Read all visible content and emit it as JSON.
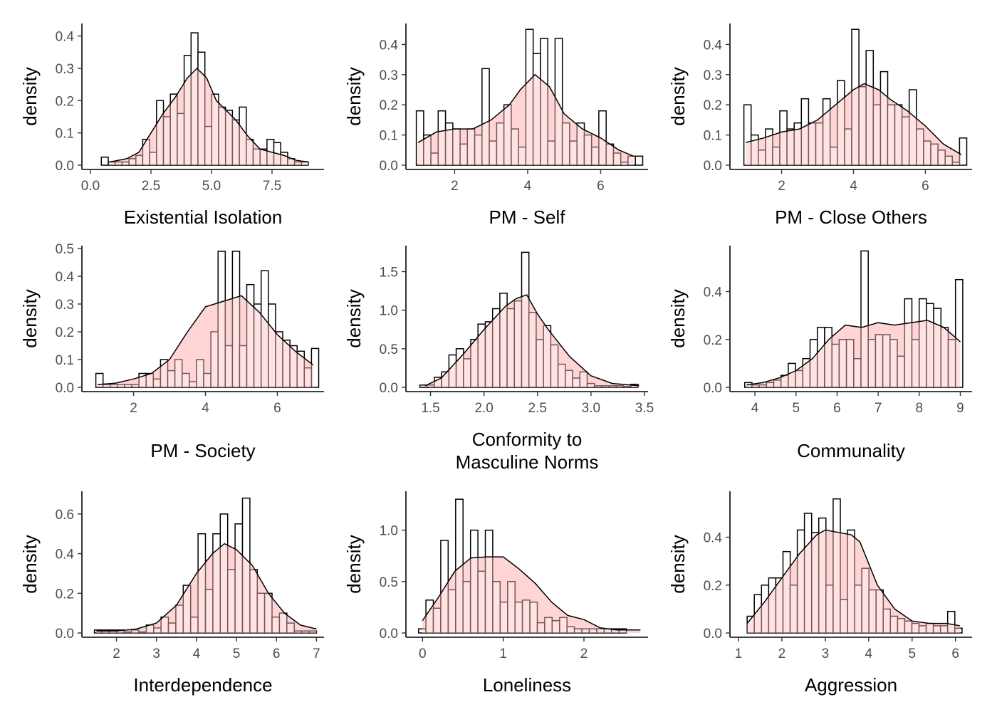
{
  "colors": {
    "density_fill": "#ffc0c0",
    "bar_fill": "#ffffff",
    "stroke": "#000000",
    "tick_text": "#4d4d4d"
  },
  "chart_data": [
    {
      "type": "histogram+density",
      "xlabel": [
        "Existential Isolation"
      ],
      "ylabel": "density",
      "xlim": [
        0,
        9.5
      ],
      "ylim": [
        0,
        0.43
      ],
      "xticks": [
        0,
        2.5,
        5,
        7.5
      ],
      "xtick_labels": [
        "0.0",
        "2.5",
        "5.0",
        "7.5"
      ],
      "yticks": [
        0,
        0.1,
        0.2,
        0.3,
        0.4
      ],
      "ytick_labels": [
        "0.0",
        "0.1",
        "0.2",
        "0.3",
        "0.4"
      ],
      "bins": {
        "start": 0.45,
        "width": 0.285,
        "heights": [
          0.025,
          0.01,
          0.01,
          0.01,
          0.02,
          0.03,
          0.08,
          0.04,
          0.2,
          0.15,
          0.22,
          0.16,
          0.34,
          0.41,
          0.35,
          0.12,
          0.22,
          0.18,
          0.17,
          0.14,
          0.18,
          0.08,
          0.05,
          0.05,
          0.08,
          0.07,
          0.04,
          0.02,
          0.01,
          0.01
        ]
      },
      "density": {
        "x": [
          0.8,
          1.5,
          2.0,
          2.5,
          3.0,
          3.5,
          4.0,
          4.4,
          4.8,
          5.2,
          5.6,
          6.0,
          6.5,
          7.0,
          7.5,
          8.0,
          8.5,
          9.0
        ],
        "y": [
          0.01,
          0.02,
          0.04,
          0.1,
          0.16,
          0.21,
          0.27,
          0.3,
          0.27,
          0.2,
          0.17,
          0.14,
          0.09,
          0.05,
          0.04,
          0.03,
          0.015,
          0.01
        ]
      }
    },
    {
      "type": "histogram+density",
      "xlabel": [
        "PM - Self"
      ],
      "ylabel": "density",
      "xlim": [
        0.9,
        7.2
      ],
      "ylim": [
        0,
        0.46
      ],
      "xticks": [
        2,
        4,
        6
      ],
      "xtick_labels": [
        "2",
        "4",
        "6"
      ],
      "yticks": [
        0,
        0.1,
        0.2,
        0.3,
        0.4
      ],
      "ytick_labels": [
        "0.0",
        "0.1",
        "0.2",
        "0.3",
        "0.4"
      ],
      "bins": {
        "start": 0.95,
        "width": 0.2,
        "heights": [
          0.18,
          0.1,
          0.04,
          0.18,
          0.14,
          0.12,
          0.07,
          0.12,
          0.1,
          0.32,
          0.08,
          0.14,
          0.2,
          0.12,
          0.06,
          0.45,
          0.37,
          0.42,
          0.08,
          0.42,
          0.14,
          0.08,
          0.14,
          0.1,
          0.06,
          0.18,
          0.07,
          0.04,
          0.01,
          0.03,
          0.03
        ]
      },
      "density": {
        "x": [
          1.0,
          1.5,
          2.0,
          2.5,
          3.0,
          3.5,
          3.8,
          4.2,
          4.6,
          5.0,
          5.5,
          6.0,
          6.5,
          6.9
        ],
        "y": [
          0.075,
          0.11,
          0.12,
          0.12,
          0.15,
          0.2,
          0.25,
          0.3,
          0.26,
          0.17,
          0.12,
          0.09,
          0.05,
          0.03
        ]
      }
    },
    {
      "type": "histogram+density",
      "xlabel": [
        "PM - Close Others"
      ],
      "ylabel": "density",
      "xlim": [
        0.8,
        7.2
      ],
      "ylim": [
        0,
        0.46
      ],
      "xticks": [
        2,
        4,
        6
      ],
      "xtick_labels": [
        "2",
        "4",
        "6"
      ],
      "yticks": [
        0,
        0.1,
        0.2,
        0.3,
        0.4
      ],
      "ytick_labels": [
        "0.0",
        "0.1",
        "0.2",
        "0.3",
        "0.4"
      ],
      "bins": {
        "start": 0.95,
        "width": 0.2,
        "heights": [
          0.2,
          0.1,
          0.05,
          0.12,
          0.06,
          0.18,
          0.12,
          0.14,
          0.22,
          0.14,
          0.14,
          0.22,
          0.06,
          0.28,
          0.12,
          0.45,
          0.26,
          0.38,
          0.2,
          0.31,
          0.2,
          0.2,
          0.16,
          0.25,
          0.12,
          0.08,
          0.07,
          0.05,
          0.03,
          0.01,
          0.09
        ]
      },
      "density": {
        "x": [
          1.0,
          1.5,
          2.0,
          2.5,
          3.0,
          3.5,
          4.0,
          4.3,
          4.7,
          5.0,
          5.5,
          6.0,
          6.5,
          7.0
        ],
        "y": [
          0.075,
          0.09,
          0.11,
          0.12,
          0.15,
          0.2,
          0.25,
          0.27,
          0.25,
          0.22,
          0.18,
          0.13,
          0.07,
          0.035
        ]
      }
    },
    {
      "type": "histogram+density",
      "xlabel": [
        "PM - Society"
      ],
      "ylabel": "density",
      "xlim": [
        0.8,
        7.2
      ],
      "ylim": [
        0,
        0.5
      ],
      "xticks": [
        2,
        4,
        6
      ],
      "xtick_labels": [
        "2",
        "4",
        "6"
      ],
      "yticks": [
        0,
        0.1,
        0.2,
        0.3,
        0.4,
        0.5
      ],
      "ytick_labels": [
        "0.0",
        "0.1",
        "0.2",
        "0.3",
        "0.4",
        "0.5"
      ],
      "bins": {
        "start": 0.95,
        "width": 0.2,
        "heights": [
          0.05,
          0.01,
          0.01,
          0.01,
          0.01,
          0.01,
          0.05,
          0.05,
          0.03,
          0.1,
          0.06,
          0.1,
          0.05,
          0.02,
          0.1,
          0.05,
          0.2,
          0.49,
          0.15,
          0.49,
          0.15,
          0.37,
          0.3,
          0.42,
          0.3,
          0.2,
          0.17,
          0.15,
          0.13,
          0.07,
          0.14
        ]
      },
      "density": {
        "x": [
          1.0,
          1.5,
          2.0,
          2.5,
          3.0,
          3.5,
          4.0,
          4.5,
          5.0,
          5.5,
          6.0,
          6.5,
          7.0
        ],
        "y": [
          0.01,
          0.015,
          0.03,
          0.05,
          0.1,
          0.2,
          0.29,
          0.31,
          0.33,
          0.27,
          0.19,
          0.13,
          0.08
        ]
      }
    },
    {
      "type": "histogram+density",
      "xlabel": [
        "Conformity to",
        "Masculine Norms"
      ],
      "ylabel": "density",
      "xlim": [
        1.35,
        3.5
      ],
      "ylim": [
        0,
        1.8
      ],
      "xticks": [
        1.5,
        2.0,
        2.5,
        3.0,
        3.5
      ],
      "xtick_labels": [
        "1.5",
        "2.0",
        "2.5",
        "3.0",
        "3.5"
      ],
      "yticks": [
        0,
        0.5,
        1.0,
        1.5
      ],
      "ytick_labels": [
        "0.0",
        "0.5",
        "1.0",
        "1.5"
      ],
      "bins": {
        "start": 1.4,
        "width": 0.068,
        "heights": [
          0.03,
          0.03,
          0.13,
          0.2,
          0.42,
          0.5,
          0.37,
          0.62,
          0.82,
          0.85,
          1.02,
          1.22,
          1.02,
          1.12,
          1.75,
          0.97,
          0.62,
          0.8,
          0.55,
          0.3,
          0.22,
          0.12,
          0.2,
          0.05,
          0.02,
          0.02,
          0.02,
          0.02,
          0.01,
          0.04
        ]
      },
      "density": {
        "x": [
          1.45,
          1.6,
          1.8,
          2.0,
          2.1,
          2.2,
          2.3,
          2.4,
          2.5,
          2.6,
          2.8,
          3.0,
          3.2,
          3.45
        ],
        "y": [
          0.02,
          0.12,
          0.42,
          0.75,
          0.9,
          1.05,
          1.15,
          1.2,
          0.95,
          0.75,
          0.4,
          0.15,
          0.05,
          0.02
        ]
      }
    },
    {
      "type": "histogram+density",
      "xlabel": [
        "Communality"
      ],
      "ylabel": "density",
      "xlim": [
        3.6,
        9.2
      ],
      "ylim": [
        0,
        0.58
      ],
      "xticks": [
        4,
        5,
        6,
        7,
        8,
        9
      ],
      "xtick_labels": [
        "4",
        "5",
        "6",
        "7",
        "8",
        "9"
      ],
      "yticks": [
        0,
        0.2,
        0.4
      ],
      "ytick_labels": [
        "0.0",
        "0.2",
        "0.4"
      ],
      "bins": {
        "start": 3.75,
        "width": 0.177,
        "heights": [
          0.02,
          0.01,
          0.01,
          0.02,
          0.03,
          0.05,
          0.1,
          0.07,
          0.12,
          0.2,
          0.25,
          0.25,
          0.18,
          0.2,
          0.2,
          0.12,
          0.57,
          0.2,
          0.22,
          0.22,
          0.2,
          0.13,
          0.37,
          0.2,
          0.37,
          0.35,
          0.33,
          0.25,
          0.2,
          0.45
        ]
      },
      "density": {
        "x": [
          3.8,
          4.2,
          4.6,
          5.0,
          5.4,
          5.8,
          6.2,
          6.6,
          7.0,
          7.4,
          7.8,
          8.2,
          8.6,
          9.0
        ],
        "y": [
          0.01,
          0.02,
          0.04,
          0.07,
          0.12,
          0.2,
          0.26,
          0.25,
          0.27,
          0.26,
          0.27,
          0.28,
          0.25,
          0.19
        ]
      }
    },
    {
      "type": "histogram+density",
      "xlabel": [
        "Interdependence"
      ],
      "ylabel": "density",
      "xlim": [
        1.35,
        7.1
      ],
      "ylim": [
        0,
        0.7
      ],
      "xticks": [
        2,
        3,
        4,
        5,
        6,
        7
      ],
      "xtick_labels": [
        "2",
        "3",
        "4",
        "5",
        "6",
        "7"
      ],
      "yticks": [
        0,
        0.2,
        0.4,
        0.6
      ],
      "ytick_labels": [
        "0.0",
        "0.2",
        "0.4",
        "0.6"
      ],
      "bins": {
        "start": 1.45,
        "width": 0.185,
        "heights": [
          0.015,
          0.015,
          0.015,
          0.015,
          0.005,
          0.015,
          0.005,
          0.04,
          0.025,
          0.08,
          0.05,
          0.14,
          0.24,
          0.08,
          0.5,
          0.22,
          0.5,
          0.6,
          0.32,
          0.55,
          0.68,
          0.32,
          0.2,
          0.2,
          0.08,
          0.1,
          0.05,
          0.01,
          0.01,
          0.01
        ]
      },
      "density": {
        "x": [
          1.5,
          2.0,
          2.5,
          3.0,
          3.5,
          4.0,
          4.4,
          4.7,
          5.0,
          5.4,
          5.8,
          6.2,
          6.6,
          7.0
        ],
        "y": [
          0.01,
          0.01,
          0.02,
          0.05,
          0.14,
          0.3,
          0.4,
          0.45,
          0.42,
          0.34,
          0.2,
          0.1,
          0.04,
          0.02
        ]
      }
    },
    {
      "type": "histogram+density",
      "xlabel": [
        "Loneliness"
      ],
      "ylabel": "density",
      "xlim": [
        -0.1,
        2.75
      ],
      "ylim": [
        0,
        1.35
      ],
      "xticks": [
        0,
        1,
        2
      ],
      "xtick_labels": [
        "0",
        "1",
        "2"
      ],
      "yticks": [
        0,
        0.5,
        1.0
      ],
      "ytick_labels": [
        "0.0",
        "0.5",
        "1.0"
      ],
      "bins": {
        "start": -0.05,
        "width": 0.092,
        "heights": [
          0.04,
          0.32,
          0.24,
          0.9,
          0.42,
          1.3,
          0.5,
          1.0,
          0.6,
          1.0,
          0.5,
          0.3,
          0.5,
          0.3,
          0.32,
          0.3,
          0.1,
          0.15,
          0.12,
          0.15,
          0.06,
          0.04,
          0.04,
          0.04,
          0.04,
          0.04,
          0.04,
          0.04
        ]
      },
      "density": {
        "x": [
          0.0,
          0.2,
          0.4,
          0.6,
          0.8,
          1.0,
          1.2,
          1.4,
          1.6,
          1.8,
          2.0,
          2.2,
          2.4,
          2.7
        ],
        "y": [
          0.12,
          0.35,
          0.6,
          0.73,
          0.74,
          0.74,
          0.62,
          0.48,
          0.3,
          0.17,
          0.13,
          0.05,
          0.03,
          0.03
        ]
      }
    },
    {
      "type": "histogram+density",
      "xlabel": [
        "Aggression"
      ],
      "ylabel": "density",
      "xlim": [
        1.0,
        6.3
      ],
      "ylim": [
        0,
        0.58
      ],
      "xticks": [
        1,
        2,
        3,
        4,
        5,
        6
      ],
      "xtick_labels": [
        "1",
        "2",
        "3",
        "4",
        "5",
        "6"
      ],
      "yticks": [
        0,
        0.2,
        0.4
      ],
      "ytick_labels": [
        "0.0",
        "0.2",
        "0.4"
      ],
      "bins": {
        "start": 1.2,
        "width": 0.165,
        "heights": [
          0.07,
          0.16,
          0.2,
          0.23,
          0.23,
          0.34,
          0.2,
          0.43,
          0.5,
          0.42,
          0.48,
          0.2,
          0.56,
          0.14,
          0.43,
          0.2,
          0.27,
          0.18,
          0.18,
          0.1,
          0.07,
          0.06,
          0.05,
          0.04,
          0.03,
          0.04,
          0.03,
          0.03,
          0.09,
          0.02
        ]
      },
      "density": {
        "x": [
          1.2,
          1.6,
          2.0,
          2.4,
          2.8,
          3.0,
          3.3,
          3.6,
          3.8,
          4.2,
          4.6,
          5.0,
          5.4,
          5.8,
          6.1
        ],
        "y": [
          0.04,
          0.13,
          0.23,
          0.33,
          0.41,
          0.43,
          0.42,
          0.41,
          0.38,
          0.2,
          0.1,
          0.05,
          0.04,
          0.04,
          0.03
        ]
      }
    }
  ]
}
